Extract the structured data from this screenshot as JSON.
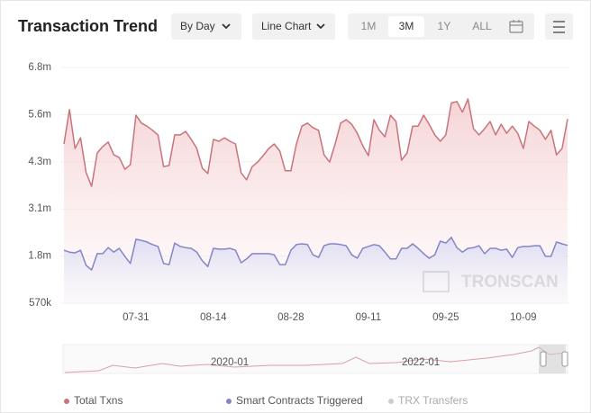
{
  "controls": {
    "interval": "By Day",
    "chart_kind": "Line Chart",
    "ranges": [
      "1M",
      "3M",
      "1Y",
      "ALL"
    ],
    "selected_range": "3M"
  },
  "chart_data": {
    "type": "line",
    "title": "Transaction Trend",
    "watermark": "TRONSCAN",
    "categories": [
      null,
      null,
      null,
      null,
      null,
      null,
      null,
      null,
      null,
      null,
      null,
      null,
      null,
      "07-31",
      null,
      null,
      null,
      null,
      null,
      null,
      null,
      null,
      null,
      null,
      null,
      null,
      null,
      "08-14",
      null,
      null,
      null,
      null,
      null,
      null,
      null,
      null,
      null,
      null,
      null,
      null,
      null,
      "08-28",
      null,
      null,
      null,
      null,
      null,
      null,
      null,
      null,
      null,
      null,
      null,
      null,
      null,
      "09-11",
      null,
      null,
      null,
      null,
      null,
      null,
      null,
      null,
      null,
      null,
      null,
      null,
      null,
      "09-25",
      null,
      null,
      null,
      null,
      null,
      null,
      null,
      null,
      null,
      null,
      null,
      null,
      null,
      "10-09",
      null,
      null,
      null,
      null,
      null,
      null,
      null,
      null
    ],
    "series": [
      {
        "name": "Total Txns",
        "color": "#c9737a",
        "visible": true,
        "values": [
          4780000,
          5690000,
          4660000,
          4940000,
          4020000,
          3660000,
          4540000,
          4710000,
          4830000,
          4490000,
          4420000,
          4110000,
          4230000,
          5540000,
          5330000,
          5250000,
          5140000,
          5020000,
          4180000,
          4210000,
          5020000,
          5020000,
          5110000,
          4900000,
          4660000,
          4140000,
          4000000,
          4900000,
          4850000,
          4940000,
          4850000,
          4780000,
          4020000,
          3830000,
          4180000,
          4300000,
          4470000,
          4660000,
          4780000,
          4590000,
          4070000,
          4070000,
          4780000,
          5250000,
          5330000,
          5210000,
          5140000,
          4490000,
          4300000,
          4780000,
          5330000,
          5420000,
          5300000,
          5060000,
          4730000,
          4470000,
          5420000,
          5140000,
          4970000,
          5540000,
          5370000,
          4350000,
          4540000,
          5250000,
          5250000,
          5540000,
          5300000,
          5020000,
          4850000,
          5020000,
          5860000,
          5900000,
          5620000,
          5970000,
          5180000,
          5020000,
          5180000,
          5370000,
          5020000,
          5300000,
          5060000,
          5250000,
          5060000,
          4660000,
          5370000,
          5250000,
          5140000,
          4900000,
          5140000,
          4490000,
          4660000,
          5440000
        ]
      },
      {
        "name": "Smart Contracts Triggered",
        "color": "#8585c9",
        "visible": true,
        "values": [
          1970000,
          1920000,
          1900000,
          1970000,
          1570000,
          1450000,
          1880000,
          1880000,
          2040000,
          1920000,
          2020000,
          1810000,
          1620000,
          2260000,
          2230000,
          2190000,
          2120000,
          2070000,
          1620000,
          1590000,
          2160000,
          2070000,
          2040000,
          2020000,
          1920000,
          1690000,
          1540000,
          2020000,
          2000000,
          2000000,
          2020000,
          1970000,
          1640000,
          1740000,
          1880000,
          1880000,
          1880000,
          1880000,
          1850000,
          1590000,
          1590000,
          1970000,
          2120000,
          2140000,
          2120000,
          1850000,
          1780000,
          2090000,
          2140000,
          2140000,
          2120000,
          2090000,
          1850000,
          1760000,
          2020000,
          2070000,
          2120000,
          2090000,
          1920000,
          1740000,
          1740000,
          2020000,
          2020000,
          2140000,
          2020000,
          1880000,
          1760000,
          1850000,
          2210000,
          2160000,
          2310000,
          2040000,
          1920000,
          2020000,
          2040000,
          2090000,
          1880000,
          2020000,
          2020000,
          1970000,
          2000000,
          1780000,
          2040000,
          2070000,
          2070000,
          2090000,
          2090000,
          1810000,
          1810000,
          2190000,
          2140000,
          2100000
        ]
      },
      {
        "name": "TRX Transfers",
        "color": "#cccccc",
        "visible": false,
        "values": [
          null,
          null,
          null,
          null,
          null,
          null,
          null,
          null,
          null,
          null,
          null,
          null,
          null,
          null,
          null,
          null,
          null,
          null,
          null,
          null,
          null,
          null,
          null,
          null,
          null,
          null,
          null,
          null,
          null,
          null,
          null,
          null,
          null,
          null,
          null,
          null,
          null,
          null,
          null,
          null,
          null,
          null,
          null,
          null,
          null,
          null,
          null,
          null,
          null,
          null,
          null,
          null,
          null,
          null,
          null,
          null,
          null,
          null,
          null,
          null,
          null,
          null,
          null,
          null,
          null,
          null,
          null,
          null,
          null,
          null,
          null,
          null,
          null,
          null,
          null,
          null,
          null,
          null,
          null,
          null,
          null,
          null,
          null,
          null,
          null,
          null,
          null,
          null,
          null,
          null,
          null,
          null
        ]
      }
    ],
    "ylim": [
      570000,
      6800000
    ],
    "yticks": [
      {
        "value": 570000,
        "label": "570k"
      },
      {
        "value": 1816000,
        "label": "1.8m"
      },
      {
        "value": 3062000,
        "label": "3.1m"
      },
      {
        "value": 4308000,
        "label": "4.3m"
      },
      {
        "value": 5554000,
        "label": "5.6m"
      },
      {
        "value": 6800000,
        "label": "6.8m"
      }
    ],
    "grid": true,
    "navigator_labels": [
      "2020-01",
      "2022-01"
    ]
  }
}
